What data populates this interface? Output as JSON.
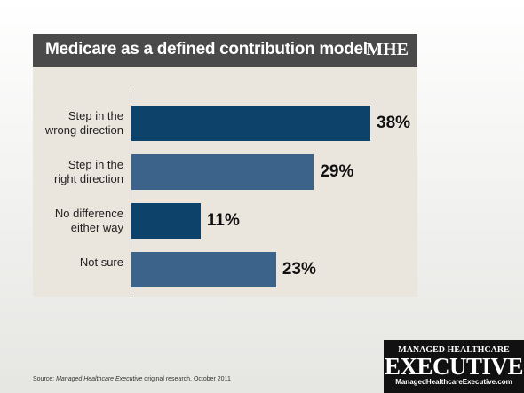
{
  "chart_data": {
    "type": "barh",
    "title": "Medicare as a defined contribution model",
    "brand": "MHE",
    "categories": [
      "Step in the\nwrong direction",
      "Step in the\nright direction",
      "No difference\neither way",
      "Not sure"
    ],
    "values": [
      38,
      29,
      11,
      23
    ],
    "value_labels": [
      "38%",
      "29%",
      "11%",
      "23%"
    ],
    "colors": [
      "#0d426a",
      "#3c6389",
      "#0d426a",
      "#3c6389"
    ]
  },
  "footer": {
    "source_prefix": "Source: ",
    "source_publication": "Managed Healthcare Executive",
    "source_suffix": " original research, October 2011",
    "logo_top": "Managed Healthcare",
    "logo_main": "Executive",
    "logo_url": "ManagedHealthcareExecutive.com"
  }
}
